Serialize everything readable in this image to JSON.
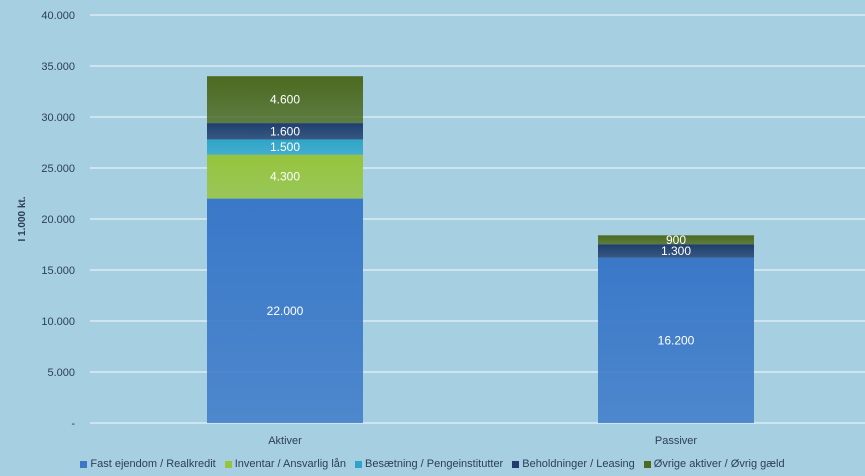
{
  "chart_data": {
    "type": "bar",
    "stacked": true,
    "categories": [
      "Aktiver",
      "Passiver"
    ],
    "ylabel": "I 1.000 kt.",
    "ylim": [
      0,
      40000
    ],
    "yticks": [
      "-",
      "5.000",
      "10.000",
      "15.000",
      "20.000",
      "25.000",
      "30.000",
      "35.000",
      "40.000"
    ],
    "grid": true,
    "legend_position": "bottom",
    "series": [
      {
        "name": "Fast ejendom / Realkredit",
        "color": "#3a78c8",
        "values": [
          22000,
          16200
        ],
        "labels": [
          "22.000",
          "16.200"
        ]
      },
      {
        "name": "Inventar / Ansvarlig lån",
        "color": "#96c43c",
        "values": [
          4300,
          0
        ],
        "labels": [
          "4.300",
          ""
        ]
      },
      {
        "name": "Besætning / Pengeinstitutter",
        "color": "#2ea5c8",
        "values": [
          1500,
          0
        ],
        "labels": [
          "1.500",
          ""
        ]
      },
      {
        "name": "Beholdninger / Leasing",
        "color": "#1f3e6e",
        "values": [
          1600,
          1300
        ],
        "labels": [
          "1.600",
          "1.300"
        ]
      },
      {
        "name": "Øvrige aktiver / Øvrig gæld",
        "color": "#4d6a1f",
        "values": [
          4600,
          900
        ],
        "labels": [
          "4.600",
          "900"
        ]
      }
    ]
  }
}
